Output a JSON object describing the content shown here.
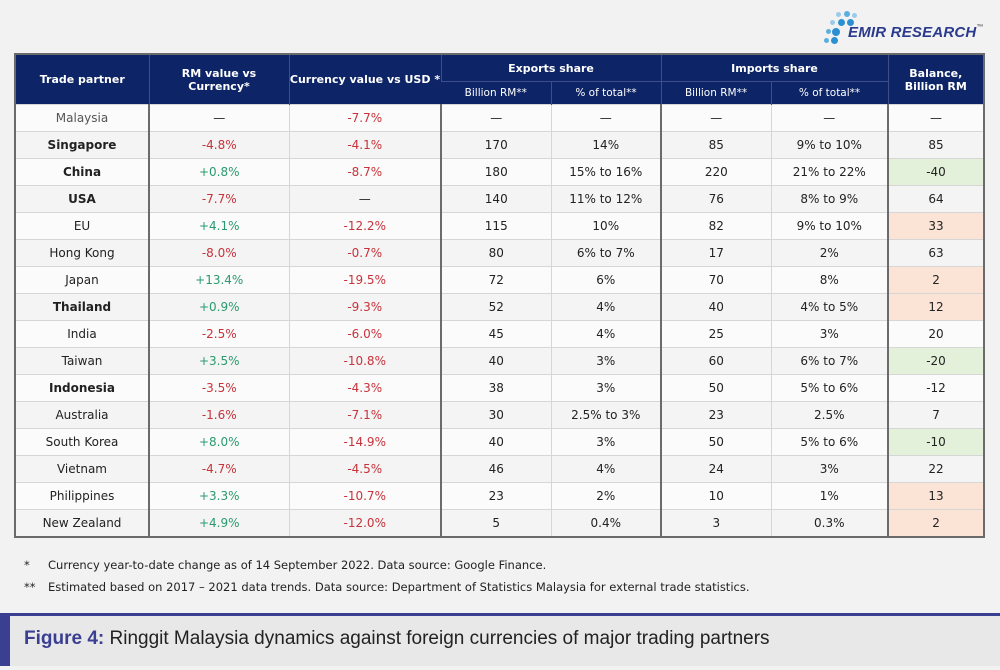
{
  "brand": {
    "name": "EMIR RESEARCH",
    "tm": "™",
    "dot_colors": [
      "#2c8fd1",
      "#5aaee0",
      "#9ccbea"
    ]
  },
  "table": {
    "headers": {
      "trade_partner": "Trade partner",
      "rm_value": "RM value vs Currency*",
      "currency_value": "Currency value vs USD *",
      "exports_share": "Exports share",
      "imports_share": "Imports share",
      "balance": "Balance, Billion RM",
      "billion_rm": "Billion RM**",
      "pct_total": "% of total**"
    },
    "rows": [
      {
        "partner": "Malaysia",
        "style": "italic",
        "rm": "—",
        "rm_sign": "neutral",
        "usd": "-7.7%",
        "usd_sign": "neg",
        "exp_b": "—",
        "exp_p": "—",
        "imp_b": "—",
        "imp_p": "—",
        "balance": "—",
        "bal_color": "none"
      },
      {
        "partner": "Singapore",
        "style": "bold",
        "rm": "-4.8%",
        "rm_sign": "neg",
        "usd": "-4.1%",
        "usd_sign": "neg",
        "exp_b": "170",
        "exp_p": "14%",
        "imp_b": "85",
        "imp_p": "9% to 10%",
        "balance": "85",
        "bal_color": "none"
      },
      {
        "partner": "China",
        "style": "bold",
        "rm": "+0.8%",
        "rm_sign": "pos",
        "usd": "-8.7%",
        "usd_sign": "neg",
        "exp_b": "180",
        "exp_p": "15% to 16%",
        "imp_b": "220",
        "imp_p": "21% to 22%",
        "balance": "-40",
        "bal_color": "green"
      },
      {
        "partner": "USA",
        "style": "bold",
        "rm": "-7.7%",
        "rm_sign": "neg",
        "usd": "—",
        "usd_sign": "neutral",
        "exp_b": "140",
        "exp_p": "11% to 12%",
        "imp_b": "76",
        "imp_p": "8% to 9%",
        "balance": "64",
        "bal_color": "none"
      },
      {
        "partner": "EU",
        "style": "normal",
        "rm": "+4.1%",
        "rm_sign": "pos",
        "usd": "-12.2%",
        "usd_sign": "neg",
        "exp_b": "115",
        "exp_p": "10%",
        "imp_b": "82",
        "imp_p": "9% to 10%",
        "balance": "33",
        "bal_color": "orange"
      },
      {
        "partner": "Hong Kong",
        "style": "normal",
        "rm": "-8.0%",
        "rm_sign": "neg",
        "usd": "-0.7%",
        "usd_sign": "neg",
        "exp_b": "80",
        "exp_p": "6% to 7%",
        "imp_b": "17",
        "imp_p": "2%",
        "balance": "63",
        "bal_color": "none"
      },
      {
        "partner": "Japan",
        "style": "normal",
        "rm": "+13.4%",
        "rm_sign": "pos",
        "usd": "-19.5%",
        "usd_sign": "neg",
        "exp_b": "72",
        "exp_p": "6%",
        "imp_b": "70",
        "imp_p": "8%",
        "balance": "2",
        "bal_color": "orange"
      },
      {
        "partner": "Thailand",
        "style": "bold",
        "rm": "+0.9%",
        "rm_sign": "pos",
        "usd": "-9.3%",
        "usd_sign": "neg",
        "exp_b": "52",
        "exp_p": "4%",
        "imp_b": "40",
        "imp_p": "4% to 5%",
        "balance": "12",
        "bal_color": "orange"
      },
      {
        "partner": "India",
        "style": "normal",
        "rm": "-2.5%",
        "rm_sign": "neg",
        "usd": "-6.0%",
        "usd_sign": "neg",
        "exp_b": "45",
        "exp_p": "4%",
        "imp_b": "25",
        "imp_p": "3%",
        "balance": "20",
        "bal_color": "none"
      },
      {
        "partner": "Taiwan",
        "style": "normal",
        "rm": "+3.5%",
        "rm_sign": "pos",
        "usd": "-10.8%",
        "usd_sign": "neg",
        "exp_b": "40",
        "exp_p": "3%",
        "imp_b": "60",
        "imp_p": "6% to 7%",
        "balance": "-20",
        "bal_color": "green"
      },
      {
        "partner": "Indonesia",
        "style": "bold",
        "rm": "-3.5%",
        "rm_sign": "neg",
        "usd": "-4.3%",
        "usd_sign": "neg",
        "exp_b": "38",
        "exp_p": "3%",
        "imp_b": "50",
        "imp_p": "5% to 6%",
        "balance": "-12",
        "bal_color": "none"
      },
      {
        "partner": "Australia",
        "style": "normal",
        "rm": "-1.6%",
        "rm_sign": "neg",
        "usd": "-7.1%",
        "usd_sign": "neg",
        "exp_b": "30",
        "exp_p": "2.5% to 3%",
        "imp_b": "23",
        "imp_p": "2.5%",
        "balance": "7",
        "bal_color": "none"
      },
      {
        "partner": "South Korea",
        "style": "normal",
        "rm": "+8.0%",
        "rm_sign": "pos",
        "usd": "-14.9%",
        "usd_sign": "neg",
        "exp_b": "40",
        "exp_p": "3%",
        "imp_b": "50",
        "imp_p": "5% to 6%",
        "balance": "-10",
        "bal_color": "green"
      },
      {
        "partner": "Vietnam",
        "style": "normal",
        "rm": "-4.7%",
        "rm_sign": "neg",
        "usd": "-4.5%",
        "usd_sign": "neg",
        "exp_b": "46",
        "exp_p": "4%",
        "imp_b": "24",
        "imp_p": "3%",
        "balance": "22",
        "bal_color": "none"
      },
      {
        "partner": "Philippines",
        "style": "normal",
        "rm": "+3.3%",
        "rm_sign": "pos",
        "usd": "-10.7%",
        "usd_sign": "neg",
        "exp_b": "23",
        "exp_p": "2%",
        "imp_b": "10",
        "imp_p": "1%",
        "balance": "13",
        "bal_color": "orange"
      },
      {
        "partner": "New Zealand",
        "style": "normal",
        "rm": "+4.9%",
        "rm_sign": "pos",
        "usd": "-12.0%",
        "usd_sign": "neg",
        "exp_b": "5",
        "exp_p": "0.4%",
        "imp_b": "3",
        "imp_p": "0.3%",
        "balance": "2",
        "bal_color": "orange"
      }
    ]
  },
  "notes": [
    {
      "mark": "*",
      "text": "Currency year-to-date change as of 14 September 2022. Data source: Google Finance."
    },
    {
      "mark": "**",
      "text": "Estimated based on 2017 – 2021 data trends. Data source: Department of Statistics Malaysia for external trade statistics."
    }
  ],
  "caption": {
    "figure_label": "Figure 4:",
    "title": " Ringgit Malaysia dynamics against foreign currencies of major trading partners"
  }
}
